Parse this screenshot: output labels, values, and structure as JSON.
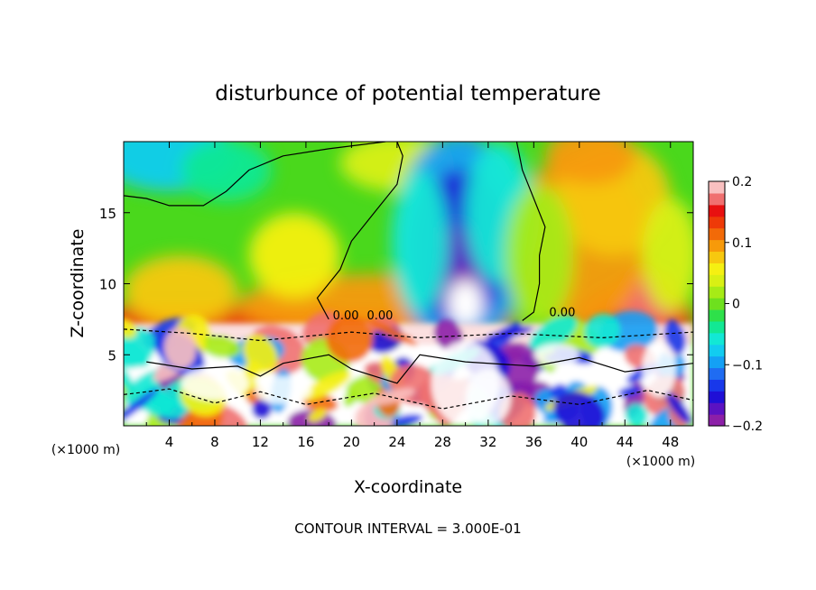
{
  "chart_data": {
    "type": "heatmap",
    "title": "disturbunce of potential temperature",
    "xlabel": "X-coordinate",
    "ylabel": "Z-coordinate",
    "x_unit_left": "(×1000 m)",
    "x_unit_right": "(×1000 m)",
    "xlim": [
      0,
      50
    ],
    "ylim": [
      0,
      20
    ],
    "x_ticks": [
      "4",
      "8",
      "12",
      "16",
      "20",
      "24",
      "28",
      "32",
      "36",
      "40",
      "44",
      "48"
    ],
    "x_tick_values": [
      4,
      8,
      12,
      16,
      20,
      24,
      28,
      32,
      36,
      40,
      44,
      48
    ],
    "y_ticks": [
      "5",
      "10",
      "15"
    ],
    "y_tick_values": [
      5,
      10,
      15
    ],
    "colorbar": {
      "range": [
        -0.2,
        0.2
      ],
      "tick_labels": [
        "0.2",
        "0.1",
        "0",
        "−0.1",
        "−0.2"
      ],
      "tick_values": [
        0.2,
        0.1,
        0,
        -0.1,
        -0.2
      ],
      "colors": [
        "#8c1fa8",
        "#5b12c2",
        "#1f0fd6",
        "#1838ea",
        "#1f6cf2",
        "#14a0f5",
        "#12ccf0",
        "#12e8d5",
        "#12e894",
        "#2ee04a",
        "#6ee01e",
        "#a7eb16",
        "#d9f014",
        "#f5f012",
        "#f7c80f",
        "#f79a0a",
        "#f26a08",
        "#ee3a08",
        "#e81010",
        "#f07070",
        "#f9c0c0"
      ]
    },
    "contour_labels": [
      "0.00",
      "0.00",
      "0.00"
    ],
    "footnote": "CONTOUR INTERVAL = 3.000E-01"
  }
}
